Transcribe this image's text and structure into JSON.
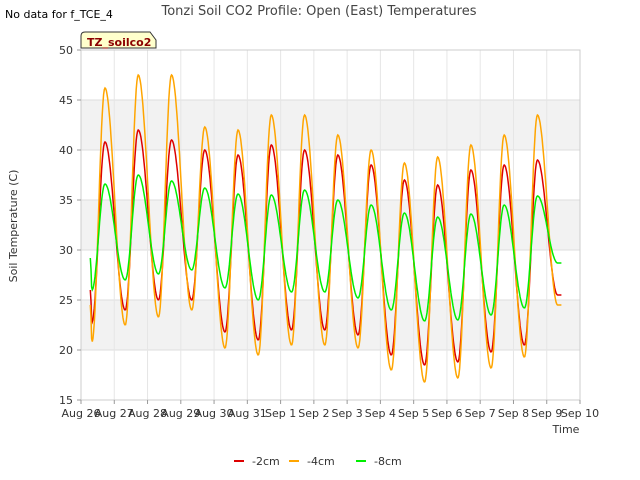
{
  "header": {
    "no_data": "No data for f_TCE_4",
    "badge": "TZ_soilco2"
  },
  "chart_data": {
    "type": "line",
    "title": "Tonzi Soil CO2 Profile: Open (East) Temperatures",
    "xlabel": "Time",
    "ylabel": "Soil Temperature (C)",
    "ylim": [
      15,
      50
    ],
    "yticks": [
      15,
      20,
      25,
      30,
      35,
      40,
      45,
      50
    ],
    "xlim": [
      0,
      15
    ],
    "xticks": [
      {
        "x": 0,
        "label": "Aug 26"
      },
      {
        "x": 1,
        "label": "Aug 27"
      },
      {
        "x": 2,
        "label": "Aug 28"
      },
      {
        "x": 3,
        "label": "Aug 29"
      },
      {
        "x": 4,
        "label": "Aug 30"
      },
      {
        "x": 5,
        "label": "Aug 31"
      },
      {
        "x": 6,
        "label": "Sep 1"
      },
      {
        "x": 7,
        "label": "Sep 2"
      },
      {
        "x": 8,
        "label": "Sep 3"
      },
      {
        "x": 9,
        "label": "Sep 4"
      },
      {
        "x": 10,
        "label": "Sep 5"
      },
      {
        "x": 11,
        "label": "Sep 6"
      },
      {
        "x": 12,
        "label": "Sep 7"
      },
      {
        "x": 13,
        "label": "Sep 8"
      },
      {
        "x": 14,
        "label": "Sep 9"
      },
      {
        "x": 15,
        "label": "Sep 10"
      }
    ],
    "grid": true,
    "legend_position": "bottom",
    "x_start": 0.28,
    "x_end": 14.45,
    "series": [
      {
        "name": "-2cm",
        "color": "#dd0000",
        "start": 26.0,
        "end": 25.5,
        "daily": [
          {
            "min": 22.8,
            "max": 40.8
          },
          {
            "min": 24.0,
            "max": 42.0
          },
          {
            "min": 25.0,
            "max": 41.0
          },
          {
            "min": 25.0,
            "max": 40.0
          },
          {
            "min": 21.8,
            "max": 39.5
          },
          {
            "min": 21.0,
            "max": 40.5
          },
          {
            "min": 22.0,
            "max": 40.0
          },
          {
            "min": 22.0,
            "max": 39.5
          },
          {
            "min": 21.5,
            "max": 38.5
          },
          {
            "min": 19.5,
            "max": 37.0
          },
          {
            "min": 18.5,
            "max": 36.5
          },
          {
            "min": 18.8,
            "max": 38.0
          },
          {
            "min": 19.8,
            "max": 38.5
          },
          {
            "min": 20.5,
            "max": 39.0
          },
          {
            "min": 25.5,
            "max": 40.0
          }
        ]
      },
      {
        "name": "-4cm",
        "color": "#ffa500",
        "start": 24.5,
        "end": 24.5,
        "daily": [
          {
            "min": 20.8,
            "max": 46.2
          },
          {
            "min": 22.5,
            "max": 47.5
          },
          {
            "min": 23.3,
            "max": 47.5
          },
          {
            "min": 24.0,
            "max": 42.3
          },
          {
            "min": 20.2,
            "max": 42.0
          },
          {
            "min": 19.5,
            "max": 43.5
          },
          {
            "min": 20.5,
            "max": 43.5
          },
          {
            "min": 20.5,
            "max": 41.5
          },
          {
            "min": 20.2,
            "max": 40.0
          },
          {
            "min": 18.0,
            "max": 38.7
          },
          {
            "min": 16.8,
            "max": 39.3
          },
          {
            "min": 17.2,
            "max": 40.5
          },
          {
            "min": 18.2,
            "max": 41.5
          },
          {
            "min": 19.3,
            "max": 43.5
          },
          {
            "min": 24.5,
            "max": 43.5
          }
        ]
      },
      {
        "name": "-8cm",
        "color": "#00ee00",
        "start": 29.2,
        "end": 28.7,
        "daily": [
          {
            "min": 26.0,
            "max": 36.6
          },
          {
            "min": 27.0,
            "max": 37.5
          },
          {
            "min": 27.6,
            "max": 36.9
          },
          {
            "min": 28.0,
            "max": 36.2
          },
          {
            "min": 26.2,
            "max": 35.6
          },
          {
            "min": 25.0,
            "max": 35.5
          },
          {
            "min": 25.8,
            "max": 36.0
          },
          {
            "min": 25.8,
            "max": 35.0
          },
          {
            "min": 25.2,
            "max": 34.5
          },
          {
            "min": 24.0,
            "max": 33.7
          },
          {
            "min": 22.9,
            "max": 33.3
          },
          {
            "min": 23.0,
            "max": 33.6
          },
          {
            "min": 23.5,
            "max": 34.5
          },
          {
            "min": 24.2,
            "max": 35.4
          },
          {
            "min": 28.7,
            "max": 35.0
          }
        ]
      }
    ]
  }
}
